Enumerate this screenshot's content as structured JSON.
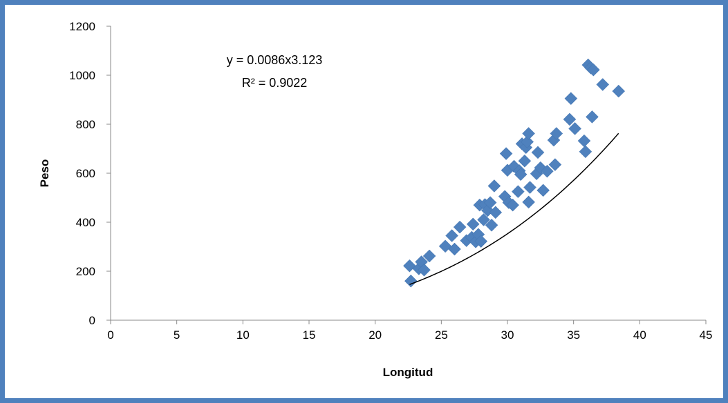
{
  "chart_data": {
    "type": "scatter",
    "title": "",
    "xlabel": "Longitud",
    "ylabel": "Peso",
    "xlim": [
      0,
      45
    ],
    "ylim": [
      0,
      1200
    ],
    "xticks": [
      "0",
      "5",
      "10",
      "15",
      "20",
      "25",
      "30",
      "35",
      "40",
      "45"
    ],
    "yticks": [
      "0",
      "200",
      "400",
      "600",
      "800",
      "1000",
      "1200"
    ],
    "grid": false,
    "legend": "none",
    "marker": "diamond",
    "marker_color": "#4f81bd",
    "trendline": {
      "type": "power",
      "a": 0.0086,
      "b": 3.123,
      "x_range": [
        22.6,
        38.4
      ],
      "color": "#000000",
      "equation_text": "y = 0.0086x3.123",
      "r2_text": "R² = 0.9022"
    },
    "series": [
      {
        "points": [
          [
            22.6,
            222
          ],
          [
            22.7,
            160
          ],
          [
            23.3,
            210
          ],
          [
            23.5,
            238
          ],
          [
            23.7,
            205
          ],
          [
            24.1,
            262
          ],
          [
            25.3,
            302
          ],
          [
            25.8,
            345
          ],
          [
            26.0,
            290
          ],
          [
            26.4,
            380
          ],
          [
            26.9,
            325
          ],
          [
            27.3,
            338
          ],
          [
            27.4,
            392
          ],
          [
            27.6,
            320
          ],
          [
            27.8,
            350
          ],
          [
            27.9,
            470
          ],
          [
            28.0,
            322
          ],
          [
            28.2,
            410
          ],
          [
            28.3,
            472
          ],
          [
            28.5,
            448
          ],
          [
            28.7,
            480
          ],
          [
            28.8,
            388
          ],
          [
            29.0,
            548
          ],
          [
            29.1,
            440
          ],
          [
            29.8,
            505
          ],
          [
            29.9,
            680
          ],
          [
            30.0,
            612
          ],
          [
            30.1,
            480
          ],
          [
            30.4,
            470
          ],
          [
            30.5,
            628
          ],
          [
            30.8,
            525
          ],
          [
            30.9,
            610
          ],
          [
            31.0,
            595
          ],
          [
            31.1,
            720
          ],
          [
            31.3,
            650
          ],
          [
            31.4,
            705
          ],
          [
            31.5,
            728
          ],
          [
            31.6,
            762
          ],
          [
            31.6,
            482
          ],
          [
            31.7,
            542
          ],
          [
            32.2,
            598
          ],
          [
            32.3,
            685
          ],
          [
            32.5,
            622
          ],
          [
            32.7,
            530
          ],
          [
            33.0,
            608
          ],
          [
            33.5,
            735
          ],
          [
            33.6,
            635
          ],
          [
            33.7,
            762
          ],
          [
            34.7,
            820
          ],
          [
            34.8,
            905
          ],
          [
            35.1,
            782
          ],
          [
            35.8,
            732
          ],
          [
            35.9,
            688
          ],
          [
            36.1,
            1042
          ],
          [
            36.3,
            1030
          ],
          [
            36.4,
            830
          ],
          [
            36.5,
            1022
          ],
          [
            37.2,
            962
          ],
          [
            38.4,
            935
          ]
        ]
      }
    ]
  }
}
